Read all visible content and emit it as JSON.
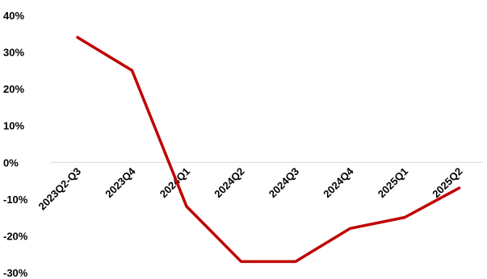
{
  "chart_data": {
    "type": "line",
    "categories": [
      "2023Q2-Q3",
      "2023Q4",
      "2024Q1",
      "2024Q2",
      "2024Q3",
      "2024Q4",
      "2025Q1",
      "2025Q2"
    ],
    "series": [
      {
        "values": [
          34,
          25,
          -12,
          -27,
          -27,
          -18,
          -15,
          -7
        ],
        "color": "#c00000"
      }
    ],
    "y_ticks": [
      "40%",
      "30%",
      "20%",
      "10%",
      "0%",
      "-10%",
      "-20%",
      "-30%"
    ],
    "ylim": [
      -30,
      40
    ],
    "grid": false,
    "legend": "none",
    "title": "",
    "xlabel": "",
    "ylabel": ""
  }
}
